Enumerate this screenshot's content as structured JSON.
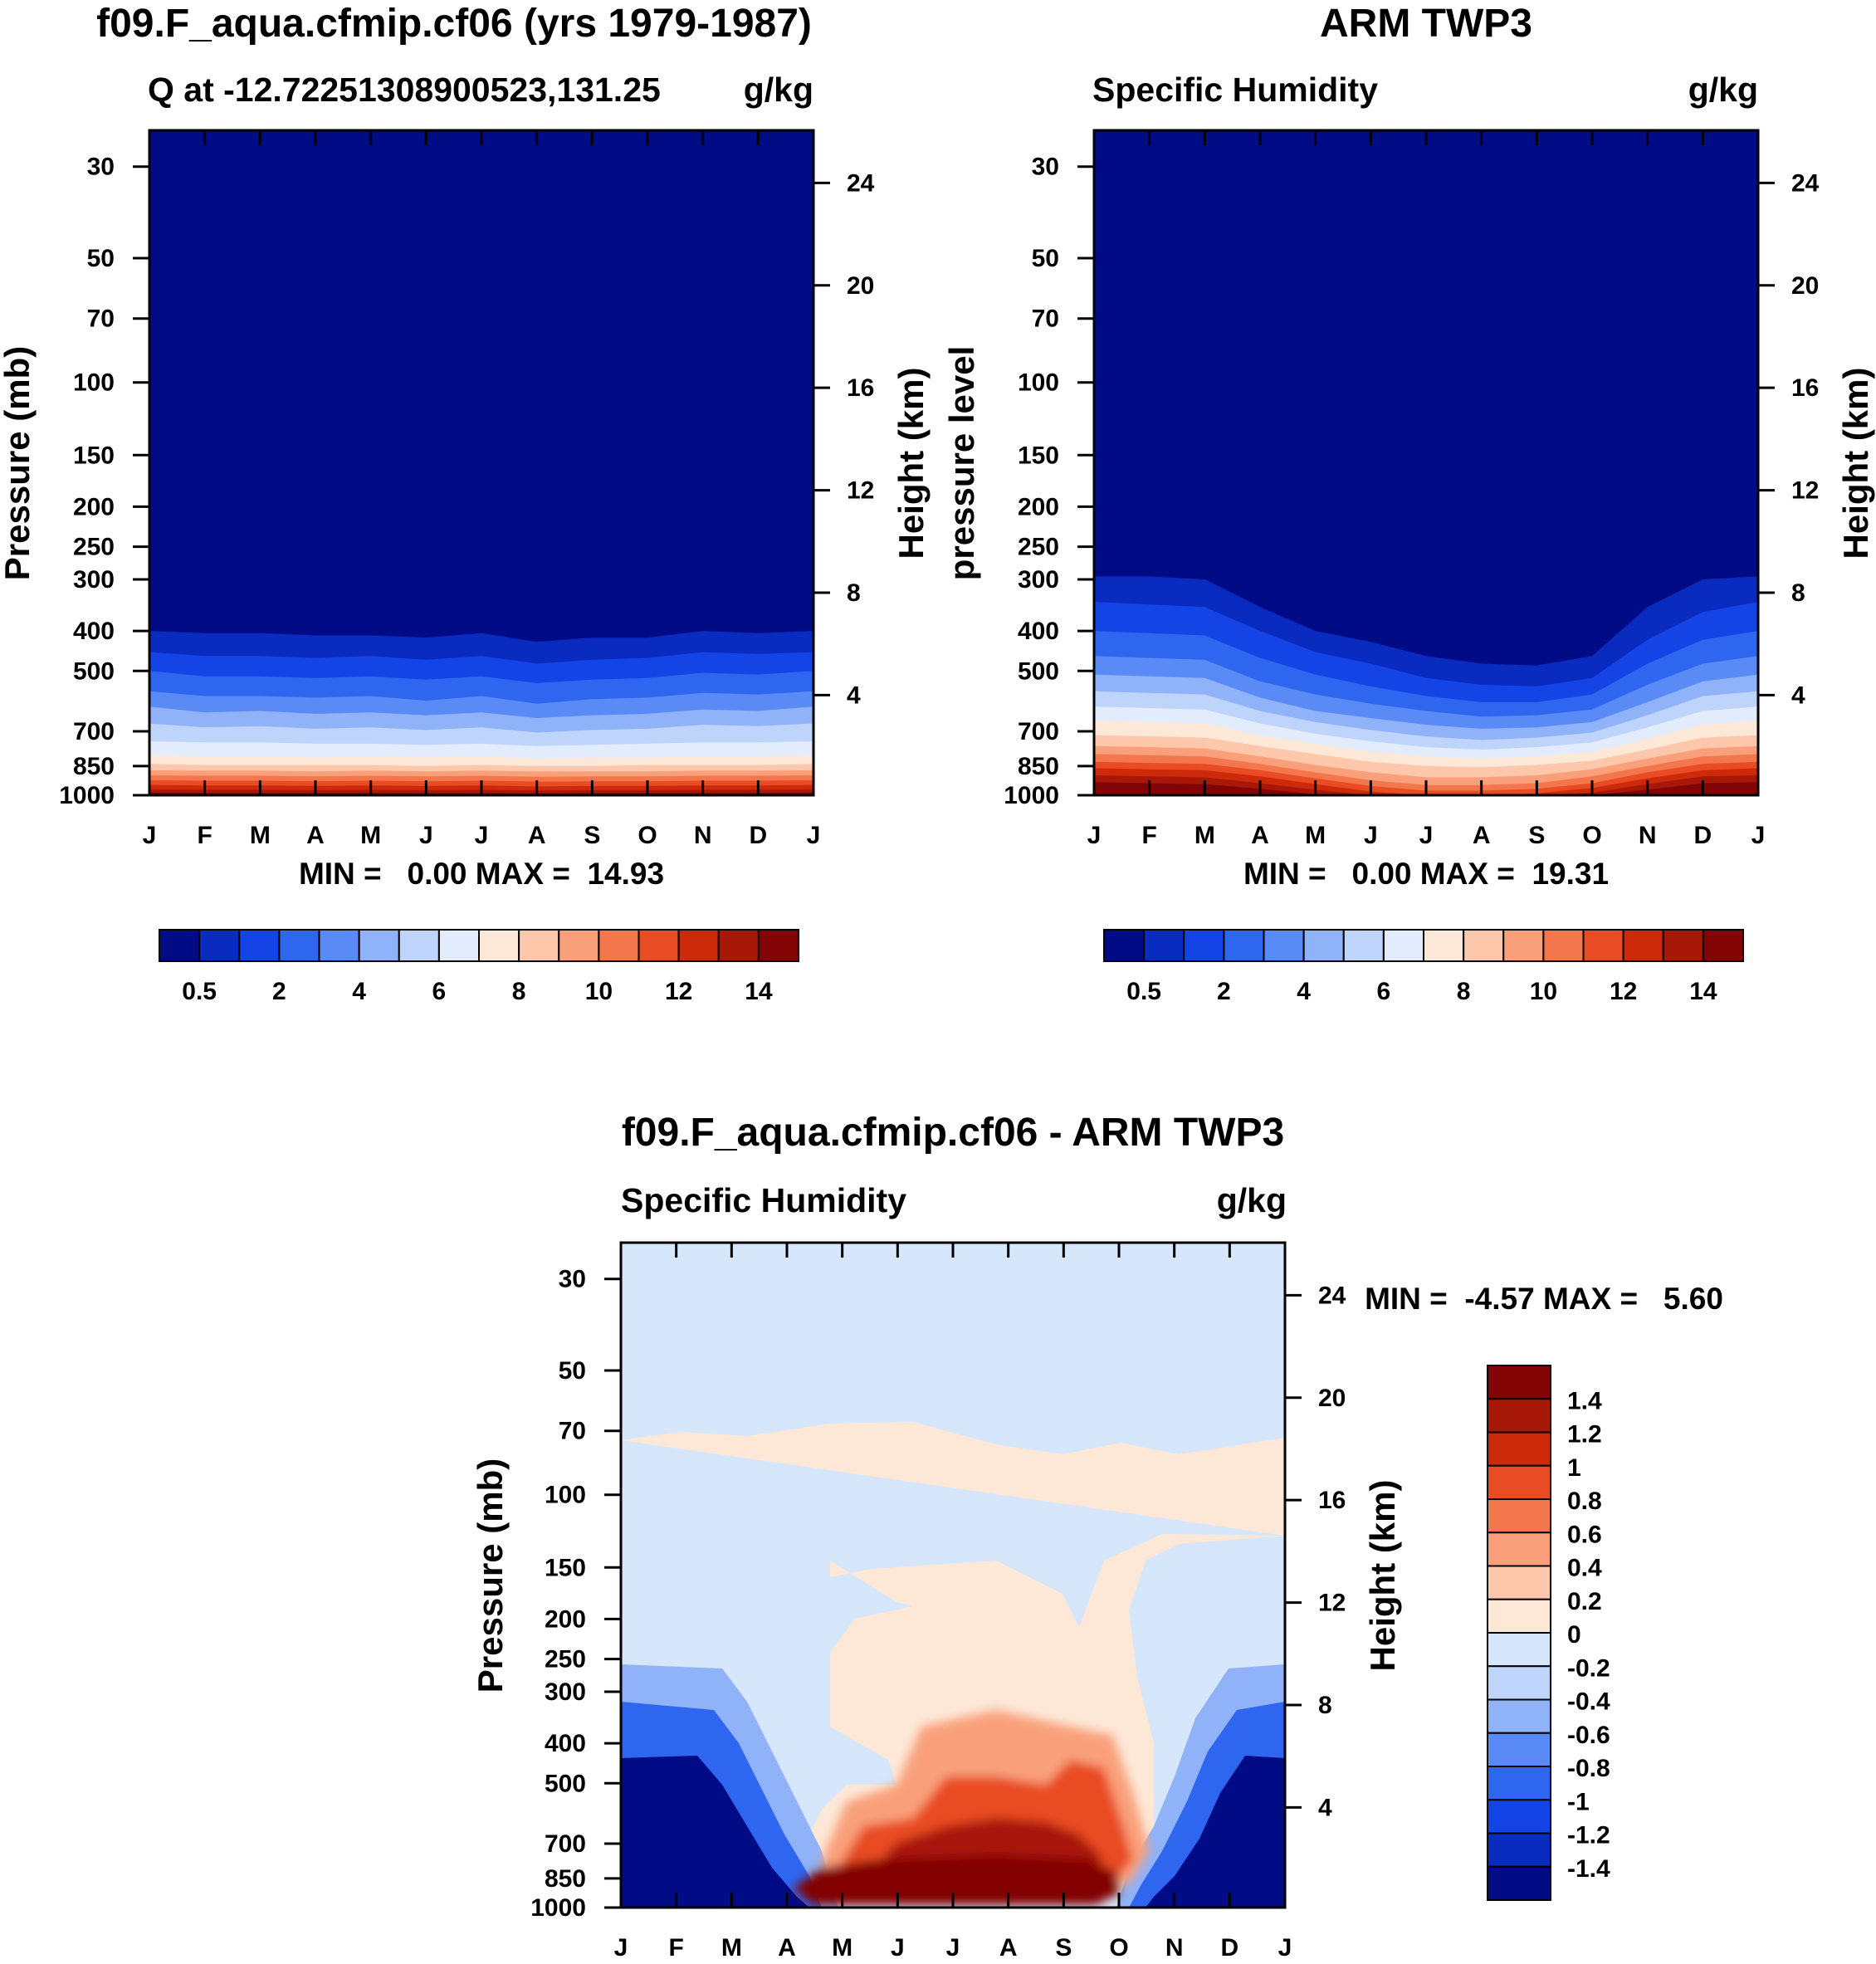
{
  "chart_data": [
    {
      "type": "heatmap",
      "id": "model",
      "title": "f09.F_aqua.cfmip.cf06 (yrs 1979-1987)",
      "subtitle_left": "Q at -12.72251308900523,131.25",
      "subtitle_right": "g/kg",
      "ylabel": "Pressure (mb)",
      "ylabel_right": "Height (km)",
      "x_ticks": [
        "J",
        "F",
        "M",
        "A",
        "M",
        "J",
        "J",
        "A",
        "S",
        "O",
        "N",
        "D",
        "J"
      ],
      "p_ticks": [
        30,
        50,
        70,
        100,
        150,
        200,
        250,
        300,
        400,
        500,
        700,
        850,
        1000
      ],
      "h_ticks": [
        24,
        20,
        16,
        12,
        8,
        4
      ],
      "stats": "MIN =   0.00 MAX =  14.93",
      "colorbar_labels": [
        "0.5",
        "2",
        "4",
        "6",
        "8",
        "10",
        "12",
        "14"
      ],
      "colorbar_colors": [
        "#000b85",
        "#0a2bc0",
        "#1444e6",
        "#2e66f0",
        "#5a8af5",
        "#8fb2f8",
        "#bfd4fb",
        "#e2ecfc",
        "#fde8d8",
        "#fcc7aa",
        "#f9a07a",
        "#f4764d",
        "#e94b24",
        "#cd2a0c",
        "#a81808",
        "#820404"
      ],
      "isolines_pressure": [
        [
          400,
          405,
          405,
          410,
          410,
          415,
          405,
          425,
          415,
          415,
          400,
          405,
          400
        ],
        [
          450,
          460,
          460,
          465,
          460,
          470,
          460,
          480,
          470,
          465,
          450,
          455,
          450
        ],
        [
          500,
          515,
          515,
          520,
          515,
          525,
          515,
          535,
          525,
          520,
          505,
          510,
          500
        ],
        [
          560,
          575,
          575,
          580,
          575,
          590,
          575,
          600,
          585,
          580,
          565,
          570,
          560
        ],
        [
          610,
          630,
          625,
          635,
          630,
          640,
          630,
          650,
          640,
          635,
          620,
          625,
          610
        ],
        [
          670,
          685,
          680,
          690,
          685,
          695,
          685,
          705,
          695,
          690,
          675,
          680,
          670
        ],
        [
          740,
          745,
          745,
          750,
          750,
          755,
          750,
          760,
          755,
          750,
          745,
          745,
          740
        ],
        [
          800,
          805,
          805,
          810,
          805,
          810,
          805,
          815,
          810,
          810,
          805,
          805,
          800
        ],
        [
          840,
          845,
          845,
          845,
          845,
          850,
          845,
          850,
          850,
          845,
          845,
          845,
          840
        ],
        [
          870,
          872,
          872,
          875,
          872,
          875,
          872,
          876,
          875,
          875,
          872,
          872,
          870
        ],
        [
          895,
          897,
          897,
          900,
          897,
          900,
          897,
          902,
          900,
          900,
          897,
          897,
          895
        ],
        [
          920,
          922,
          922,
          925,
          922,
          925,
          922,
          927,
          925,
          925,
          922,
          922,
          920
        ],
        [
          945,
          947,
          947,
          950,
          947,
          950,
          947,
          952,
          950,
          950,
          947,
          947,
          945
        ],
        [
          968,
          970,
          970,
          972,
          970,
          972,
          970,
          974,
          972,
          972,
          970,
          970,
          968
        ],
        [
          985,
          987,
          987,
          988,
          987,
          988,
          987,
          990,
          988,
          988,
          987,
          987,
          985
        ]
      ]
    },
    {
      "type": "heatmap",
      "id": "obs",
      "title": "ARM TWP3",
      "subtitle_left": "Specific Humidity",
      "subtitle_right": "g/kg",
      "ylabel": "pressure level",
      "ylabel_right": "Height (km)",
      "x_ticks": [
        "J",
        "F",
        "M",
        "A",
        "M",
        "J",
        "J",
        "A",
        "S",
        "O",
        "N",
        "D",
        "J"
      ],
      "p_ticks": [
        30,
        50,
        70,
        100,
        150,
        200,
        250,
        300,
        400,
        500,
        700,
        850,
        1000
      ],
      "h_ticks": [
        24,
        20,
        16,
        12,
        8,
        4
      ],
      "stats": "MIN =   0.00 MAX =  19.31",
      "colorbar_labels": [
        "0.5",
        "2",
        "4",
        "6",
        "8",
        "10",
        "12",
        "14"
      ],
      "colorbar_colors": [
        "#000b85",
        "#0a2bc0",
        "#1444e6",
        "#2e66f0",
        "#5a8af5",
        "#8fb2f8",
        "#bfd4fb",
        "#e2ecfc",
        "#fde8d8",
        "#fcc7aa",
        "#f9a07a",
        "#f4764d",
        "#e94b24",
        "#cd2a0c",
        "#a81808",
        "#820404"
      ],
      "isolines_pressure": [
        [
          295,
          295,
          300,
          350,
          400,
          425,
          460,
          480,
          485,
          460,
          350,
          300,
          295
        ],
        [
          340,
          345,
          350,
          400,
          450,
          480,
          520,
          540,
          545,
          520,
          420,
          360,
          340
        ],
        [
          400,
          405,
          410,
          465,
          510,
          545,
          575,
          595,
          595,
          570,
          480,
          420,
          400
        ],
        [
          460,
          465,
          470,
          530,
          570,
          600,
          625,
          645,
          640,
          620,
          540,
          480,
          460
        ],
        [
          510,
          515,
          520,
          580,
          625,
          650,
          675,
          690,
          685,
          665,
          595,
          530,
          510
        ],
        [
          560,
          565,
          570,
          625,
          665,
          695,
          720,
          735,
          725,
          705,
          640,
          575,
          560
        ],
        [
          610,
          615,
          620,
          670,
          710,
          740,
          765,
          775,
          765,
          745,
          685,
          625,
          610
        ],
        [
          660,
          665,
          670,
          715,
          750,
          785,
          805,
          815,
          805,
          785,
          730,
          675,
          660
        ],
        [
          715,
          720,
          725,
          760,
          795,
          830,
          850,
          855,
          845,
          825,
          775,
          725,
          715
        ],
        [
          760,
          765,
          770,
          805,
          845,
          880,
          905,
          905,
          895,
          865,
          815,
          770,
          760
        ],
        [
          795,
          800,
          805,
          840,
          880,
          920,
          945,
          945,
          935,
          900,
          850,
          805,
          795
        ],
        [
          830,
          835,
          840,
          870,
          910,
          950,
          975,
          975,
          965,
          935,
          880,
          840,
          830
        ],
        [
          860,
          865,
          870,
          900,
          940,
          980,
          1000,
          1000,
          990,
          960,
          910,
          870,
          860
        ],
        [
          895,
          900,
          905,
          935,
          970,
          1000,
          1000,
          1000,
          1000,
          985,
          940,
          900,
          895
        ],
        [
          930,
          935,
          940,
          965,
          995,
          1000,
          1000,
          1000,
          1000,
          1000,
          970,
          935,
          930
        ]
      ]
    },
    {
      "type": "heatmap",
      "id": "diff",
      "title": "f09.F_aqua.cfmip.cf06 - ARM TWP3",
      "subtitle_left": "Specific Humidity",
      "subtitle_right": "g/kg",
      "ylabel": "Pressure (mb)",
      "ylabel_right": "Height (km)",
      "x_ticks": [
        "J",
        "F",
        "M",
        "A",
        "M",
        "J",
        "J",
        "A",
        "S",
        "O",
        "N",
        "D",
        "J"
      ],
      "p_ticks": [
        30,
        50,
        70,
        100,
        150,
        200,
        250,
        300,
        400,
        500,
        700,
        850,
        1000
      ],
      "h_ticks": [
        24,
        20,
        16,
        12,
        8,
        4
      ],
      "stats": "MIN =  -4.57 MAX =   5.60",
      "colorbar_labels": [
        "1.4",
        "1.2",
        "1",
        "0.8",
        "0.6",
        "0.4",
        "0.2",
        "0",
        "-0.2",
        "-0.4",
        "-0.6",
        "-0.8",
        "-1",
        "-1.2",
        "-1.4"
      ],
      "colorbar_colors": [
        "#820404",
        "#a81808",
        "#cd2a0c",
        "#e94b24",
        "#f4764d",
        "#f9a07a",
        "#fcc7aa",
        "#fde8d8",
        "#d6e6fb",
        "#bfd4fb",
        "#8fb2f8",
        "#5a8af5",
        "#2e66f0",
        "#1444e6",
        "#0a2bc0",
        "#000b85"
      ],
      "background_value": -0.1
    }
  ]
}
